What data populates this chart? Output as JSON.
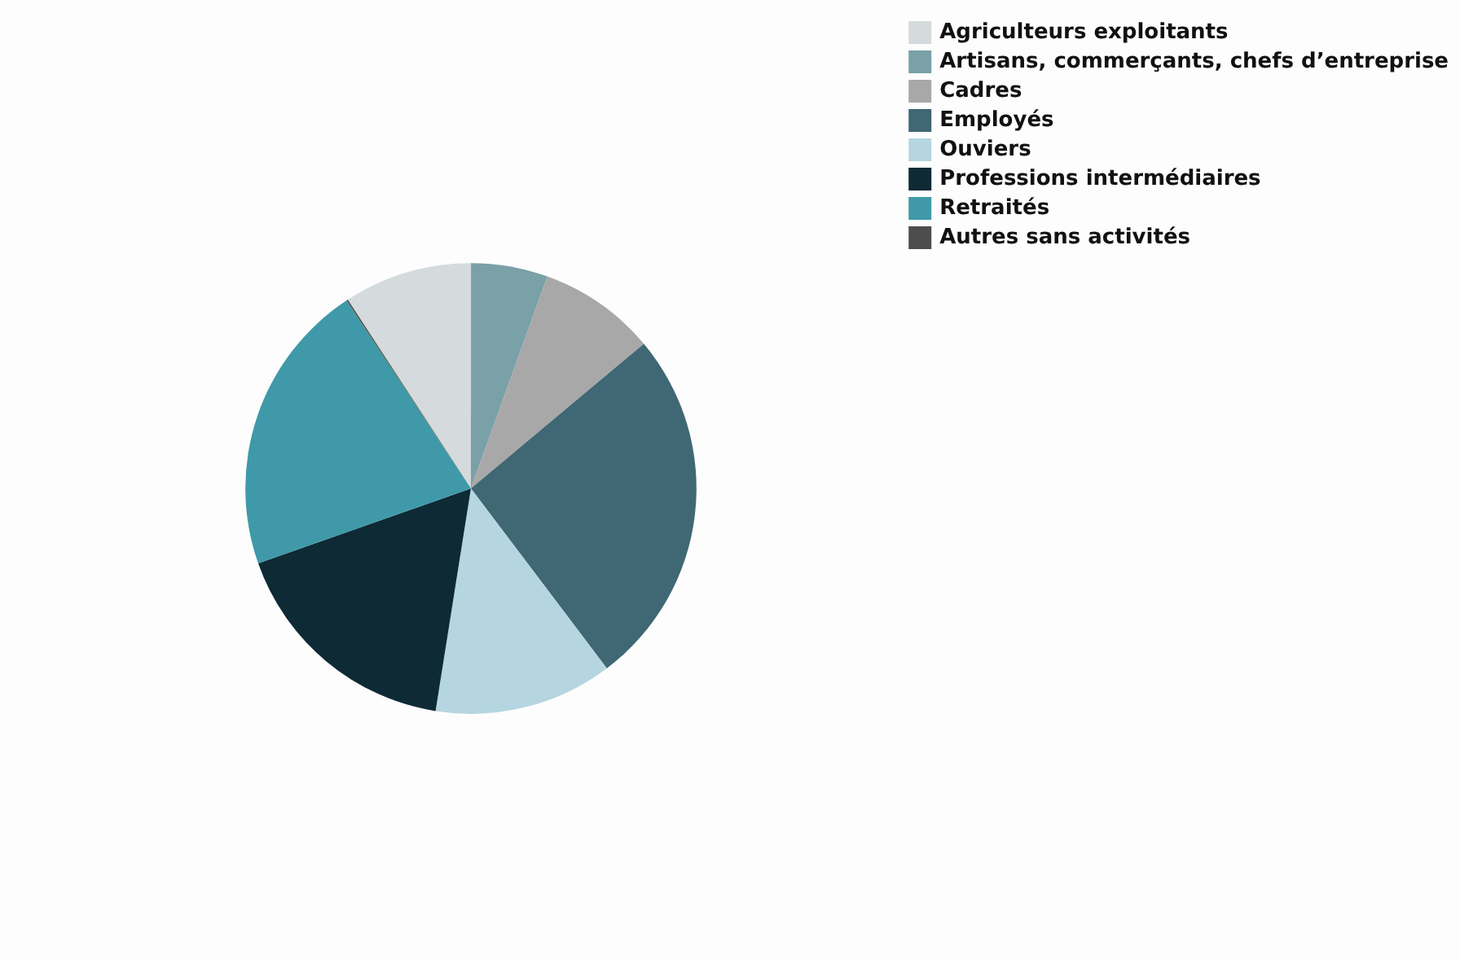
{
  "chart_data": {
    "type": "pie",
    "categories": [
      "Agriculteurs exploitants",
      "Artisans, commerçants, chefs d’entreprise",
      "Cadres",
      "Employés",
      "Ouviers",
      "Professions intermédiaires",
      "Retraités",
      "Autres sans activités"
    ],
    "values": [
      9.2,
      5.5,
      8.4,
      25.8,
      12.8,
      17.1,
      21.1,
      0.1
    ],
    "colors": [
      "#d5dadc",
      "#7aa0a8",
      "#a8a8a8",
      "#3f6774",
      "#b5d6e0",
      "#0d2a35",
      "#3f99a8",
      "#4d4d4d"
    ],
    "legend": "top right"
  }
}
